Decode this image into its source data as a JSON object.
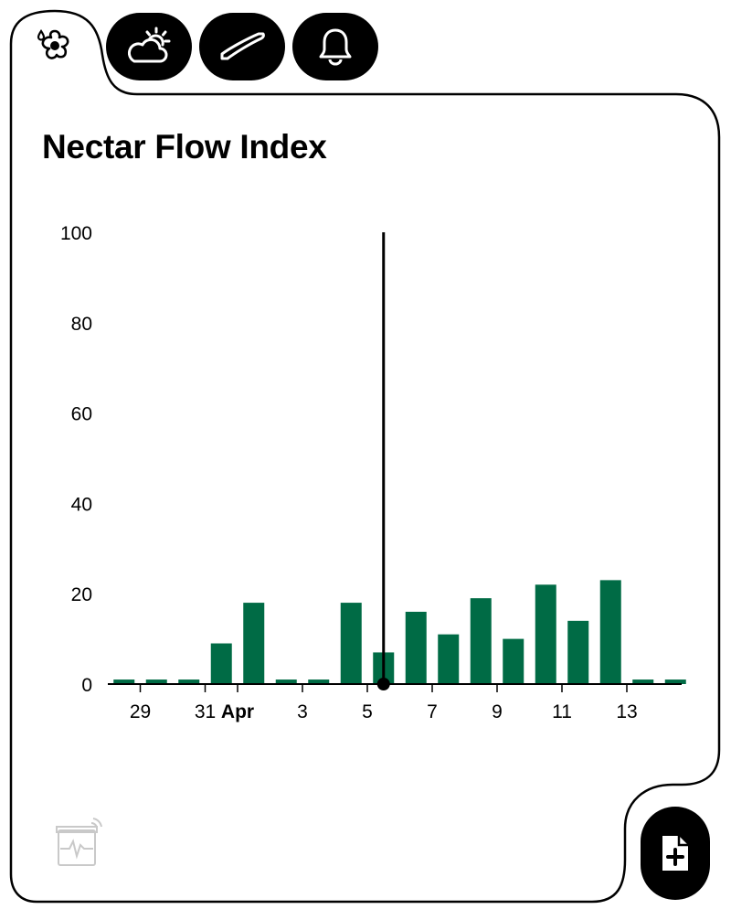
{
  "title": "Nectar Flow Index",
  "colors": {
    "bar": "#006b45",
    "ink": "#000000",
    "background": "#ffffff"
  },
  "tabs": [
    {
      "icon": "flower-drop-icon",
      "active": true
    },
    {
      "icon": "partly-sunny-icon",
      "active": false
    },
    {
      "icon": "hive-tool-icon",
      "active": false
    },
    {
      "icon": "bell-icon",
      "active": false
    }
  ],
  "chart_data": {
    "type": "bar",
    "title": "Nectar Flow Index",
    "xlabel": "",
    "ylabel": "",
    "ylim": [
      0,
      100
    ],
    "y_ticks": [
      0,
      20,
      40,
      60,
      80,
      100
    ],
    "grid": false,
    "categories": [
      "Mar 28",
      "Mar 29",
      "Mar 30",
      "Mar 31",
      "Apr 1",
      "Apr 2",
      "Apr 3",
      "Apr 4",
      "Apr 5",
      "Apr 6",
      "Apr 7",
      "Apr 8",
      "Apr 9",
      "Apr 10",
      "Apr 11",
      "Apr 12",
      "Apr 13",
      "Apr 14"
    ],
    "values": [
      1,
      1,
      1,
      9,
      18,
      1,
      1,
      18,
      7,
      16,
      11,
      19,
      10,
      22,
      14,
      23,
      1,
      1
    ],
    "x_tick_labels": [
      {
        "index": 1,
        "label": "29",
        "bold": false
      },
      {
        "index": 3,
        "label": "31",
        "bold": false
      },
      {
        "index": 4,
        "label": "Apr",
        "bold": true
      },
      {
        "index": 6,
        "label": "3",
        "bold": false
      },
      {
        "index": 8,
        "label": "5",
        "bold": false
      },
      {
        "index": 10,
        "label": "7",
        "bold": false
      },
      {
        "index": 12,
        "label": "9",
        "bold": false
      },
      {
        "index": 14,
        "label": "11",
        "bold": false
      },
      {
        "index": 16,
        "label": "13",
        "bold": false
      }
    ],
    "cursor": {
      "index": 8
    }
  },
  "icons": {
    "bottom_left": "hive-monitor-icon",
    "action": "add-document-icon"
  }
}
